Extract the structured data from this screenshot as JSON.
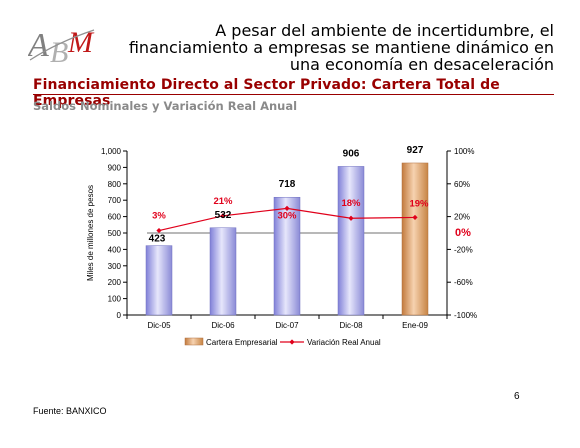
{
  "header": {
    "logo_text": "ABM",
    "headline": "A pesar del ambiente de incertidumbre, el financiamiento a empresas se mantiene dinámico en una economía en desaceleración"
  },
  "slide": {
    "title": "Financiamiento Directo al Sector Privado: Cartera Total de Empresas",
    "subtitle": "Saldos Nominales y Variación Real Anual",
    "source": "Fuente:  BANXICO",
    "page_number": "6"
  },
  "chart_data": {
    "type": "bar",
    "categories": [
      "Dic-05",
      "Dic-06",
      "Dic-07",
      "Dic-08",
      "Ene-09"
    ],
    "series": [
      {
        "name": "Cartera Empresarial",
        "type": "bar",
        "axis": "left",
        "values": [
          423,
          532,
          718,
          906,
          927
        ],
        "labels": [
          "423",
          "532",
          "718",
          "906",
          "927"
        ]
      },
      {
        "name": "Variación Real Anual",
        "type": "line",
        "axis": "right",
        "values": [
          3,
          21,
          30,
          18,
          19
        ],
        "labels": [
          "3%",
          "21%",
          "30%",
          "18%",
          "19%"
        ]
      }
    ],
    "ylabel": "Miles de millones de pesos",
    "ylim": [
      0,
      1000
    ],
    "yticks": [
      "0",
      "100",
      "200",
      "300",
      "400",
      "500",
      "600",
      "700",
      "800",
      "900",
      "1,000"
    ],
    "y2lim": [
      -100,
      100
    ],
    "y2ticks": [
      "-100%",
      "-60%",
      "-20%",
      "20%",
      "60%",
      "100%"
    ],
    "reference_line": {
      "value": 0,
      "label": "0%"
    },
    "legend_position": "bottom",
    "colors": {
      "bar": "#a9a9e8",
      "bar_highlight": "#e3a572",
      "line": "#e0001b",
      "label_red": "#e0001b",
      "reference": "#a0a0a0"
    }
  }
}
